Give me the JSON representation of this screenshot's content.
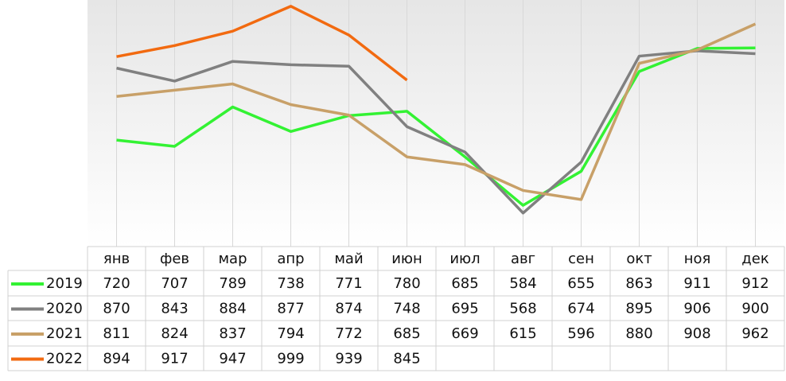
{
  "chart_data": {
    "type": "line",
    "categories": [
      "янв",
      "фев",
      "мар",
      "апр",
      "май",
      "июн",
      "июл",
      "авг",
      "сен",
      "окт",
      "ноя",
      "дек"
    ],
    "series": [
      {
        "name": "2019",
        "color": "#33f233",
        "values": [
          720,
          707,
          789,
          738,
          771,
          780,
          685,
          584,
          655,
          863,
          911,
          912
        ]
      },
      {
        "name": "2020",
        "color": "#808080",
        "values": [
          870,
          843,
          884,
          877,
          874,
          748,
          695,
          568,
          674,
          895,
          906,
          900
        ]
      },
      {
        "name": "2021",
        "color": "#c8a068",
        "values": [
          811,
          824,
          837,
          794,
          772,
          685,
          669,
          615,
          596,
          880,
          908,
          962
        ]
      },
      {
        "name": "2022",
        "color": "#f26a10",
        "values": [
          894,
          917,
          947,
          999,
          939,
          845,
          null,
          null,
          null,
          null,
          null,
          null
        ]
      }
    ],
    "ylim": [
      498,
      1012
    ],
    "grid": true
  }
}
